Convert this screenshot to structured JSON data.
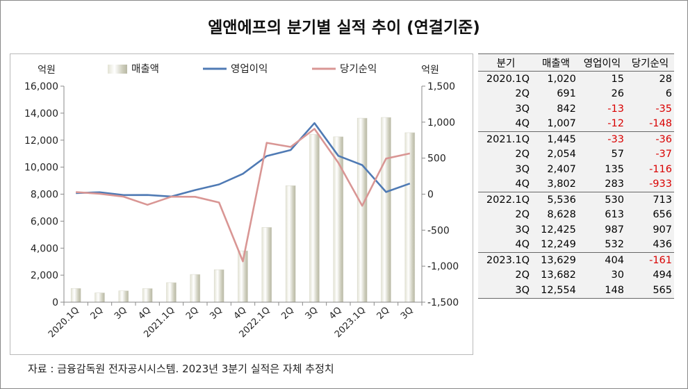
{
  "title": "엘앤에프의 분기별 실적 추이 (연결기준)",
  "source": "자료 : 금융감독원 전자공시시스템. 2023년 3분기 실적은 자체 추정치",
  "chart_data": {
    "type": "bar+line",
    "categories": [
      "2020.1Q",
      "2Q",
      "3Q",
      "4Q",
      "2021.1Q",
      "2Q",
      "3Q",
      "4Q",
      "2022.1Q",
      "2Q",
      "3Q",
      "4Q",
      "2023.1Q",
      "2Q",
      "3Q"
    ],
    "series": [
      {
        "name": "매출액",
        "type": "bar",
        "axis": "left",
        "color": "#c8c8b4",
        "values": [
          1020,
          691,
          842,
          1007,
          1445,
          2054,
          2407,
          3802,
          5536,
          8628,
          12425,
          12249,
          13629,
          13682,
          12554
        ]
      },
      {
        "name": "영업이익",
        "type": "line",
        "axis": "right",
        "color": "#4f7ab4",
        "values": [
          15,
          26,
          -13,
          -12,
          -33,
          57,
          135,
          283,
          530,
          613,
          987,
          532,
          404,
          30,
          148
        ]
      },
      {
        "name": "당기순익",
        "type": "line",
        "axis": "right",
        "color": "#d99694",
        "values": [
          28,
          6,
          -35,
          -148,
          -36,
          -37,
          -116,
          -933,
          713,
          656,
          907,
          436,
          -161,
          494,
          565
        ]
      }
    ],
    "left_axis": {
      "unit": "억원",
      "ylim": [
        0,
        16000
      ],
      "ticks": [
        "0",
        "2,000",
        "4,000",
        "6,000",
        "8,000",
        "10,000",
        "12,000",
        "14,000",
        "16,000"
      ]
    },
    "right_axis": {
      "unit": "억원",
      "ylim": [
        -1500,
        1500
      ],
      "ticks": [
        "-1,500",
        "-1,000",
        "-500",
        "0",
        "500",
        "1,000",
        "1,500"
      ]
    },
    "legend": "top",
    "grid": false
  },
  "table": {
    "headers": [
      "분기",
      "매출액",
      "영업이익",
      "당기순익"
    ],
    "rows": [
      [
        "2020.1Q",
        "1,020",
        "15",
        "28"
      ],
      [
        "2Q",
        "691",
        "26",
        "6"
      ],
      [
        "3Q",
        "842",
        "-13",
        "-35"
      ],
      [
        "4Q",
        "1,007",
        "-12",
        "-148"
      ],
      [
        "2021.1Q",
        "1,445",
        "-33",
        "-36"
      ],
      [
        "2Q",
        "2,054",
        "57",
        "-37"
      ],
      [
        "3Q",
        "2,407",
        "135",
        "-116"
      ],
      [
        "4Q",
        "3,802",
        "283",
        "-933"
      ],
      [
        "2022.1Q",
        "5,536",
        "530",
        "713"
      ],
      [
        "2Q",
        "8,628",
        "613",
        "656"
      ],
      [
        "3Q",
        "12,425",
        "987",
        "907"
      ],
      [
        "4Q",
        "12,249",
        "532",
        "436"
      ],
      [
        "2023.1Q",
        "13,629",
        "404",
        "-161"
      ],
      [
        "2Q",
        "13,682",
        "30",
        "494"
      ],
      [
        "3Q",
        "12,554",
        "148",
        "565"
      ]
    ],
    "negative_color": "#d90000"
  }
}
